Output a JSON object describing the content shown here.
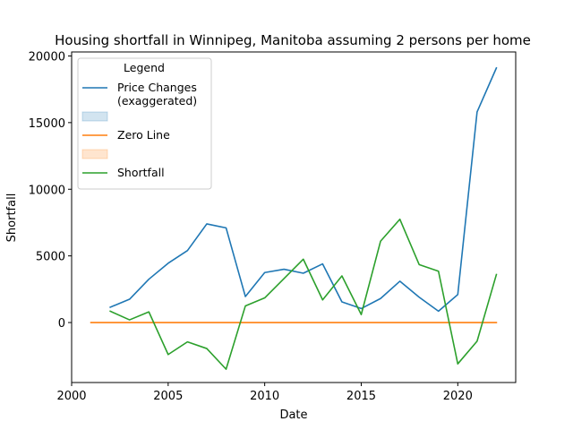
{
  "chart_data": {
    "type": "line",
    "title": "Housing shortfall in Winnipeg, Manitoba assuming 2 persons per home",
    "xlabel": "Date",
    "ylabel": "Shortfall",
    "xlim": [
      2000,
      2023
    ],
    "ylim": [
      -4500,
      20300
    ],
    "xticks": [
      2000,
      2005,
      2010,
      2015,
      2020
    ],
    "yticks": [
      0,
      5000,
      10000,
      15000,
      20000
    ],
    "grid": false,
    "legend": {
      "title": "Legend",
      "placement": "top-left",
      "entries": [
        {
          "label": "Price Changes (exaggerated)",
          "label_lines": [
            "Price Changes",
            "(exaggerated)"
          ],
          "kind": "line",
          "color": "#1f77b4"
        },
        {
          "label": "",
          "label_lines": [],
          "kind": "patch",
          "color": "#1f77b4"
        },
        {
          "label": "Zero Line",
          "label_lines": [
            "Zero Line"
          ],
          "kind": "line",
          "color": "#ff7f0e"
        },
        {
          "label": "",
          "label_lines": [],
          "kind": "patch",
          "color": "#ff7f0e"
        },
        {
          "label": "Shortfall",
          "label_lines": [
            "Shortfall"
          ],
          "kind": "line",
          "color": "#2ca02c"
        }
      ]
    },
    "series": [
      {
        "name": "Price Changes (exaggerated)",
        "color": "#1f77b4",
        "x": [
          2002,
          2003,
          2004,
          2005,
          2006,
          2007,
          2008,
          2009,
          2010,
          2011,
          2012,
          2013,
          2014,
          2015,
          2016,
          2017,
          2018,
          2019,
          2020,
          2021,
          2022
        ],
        "values": [
          1150,
          1750,
          3250,
          4450,
          5400,
          7400,
          7100,
          1950,
          3750,
          4000,
          3700,
          4400,
          1550,
          1050,
          1800,
          3100,
          1900,
          850,
          2100,
          15800,
          19100
        ]
      },
      {
        "name": "Zero Line",
        "color": "#ff7f0e",
        "x": [
          2001,
          2022
        ],
        "values": [
          0,
          0
        ]
      },
      {
        "name": "Shortfall",
        "color": "#2ca02c",
        "x": [
          2002,
          2003,
          2004,
          2005,
          2006,
          2007,
          2008,
          2009,
          2010,
          2011,
          2012,
          2013,
          2014,
          2015,
          2016,
          2017,
          2018,
          2019,
          2020,
          2021,
          2022
        ],
        "values": [
          850,
          200,
          800,
          -2400,
          -1450,
          -1950,
          -3500,
          1250,
          1850,
          3300,
          4750,
          1700,
          3500,
          600,
          6100,
          7750,
          4350,
          3850,
          -3100,
          -1400,
          3600
        ]
      }
    ]
  }
}
